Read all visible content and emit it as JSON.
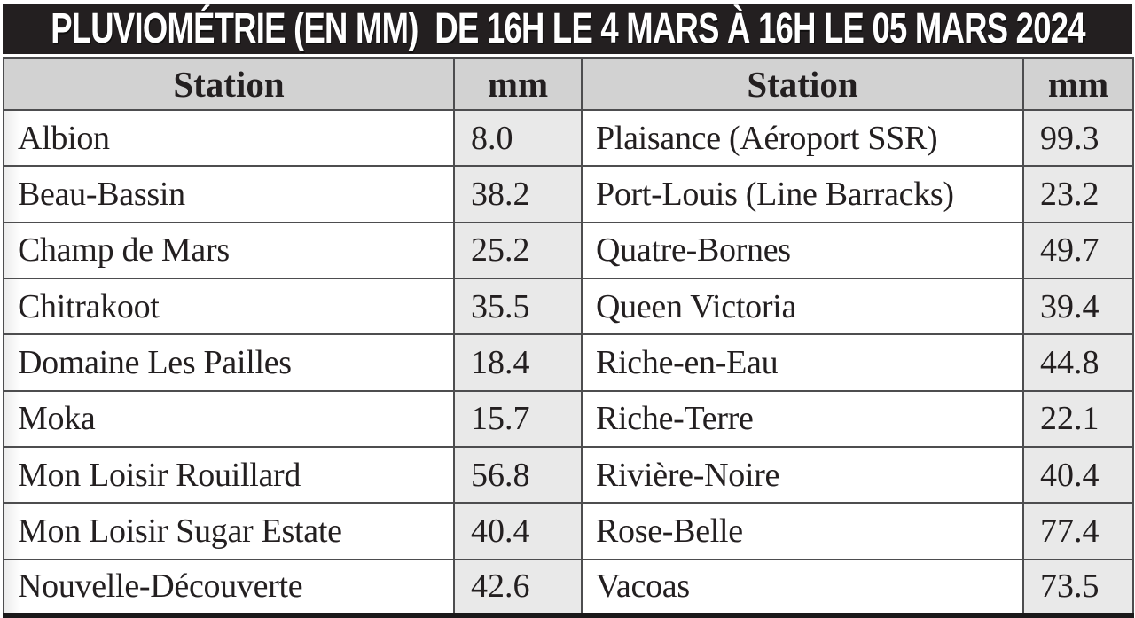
{
  "title": "PLUVIOMÉTRIE (EN MM)  DE 16H LE 4 MARS À 16H LE 05 MARS 2024",
  "table": {
    "headers": [
      "Station",
      "mm",
      "Station",
      "mm"
    ],
    "rows": [
      [
        "Albion",
        "8.0",
        "Plaisance (Aéroport SSR)",
        "99.3"
      ],
      [
        "Beau-Bassin",
        "38.2",
        "Port-Louis (Line Barracks)",
        "23.2"
      ],
      [
        "Champ de Mars",
        "25.2",
        "Quatre-Bornes",
        "49.7"
      ],
      [
        "Chitrakoot",
        "35.5",
        "Queen Victoria",
        "39.4"
      ],
      [
        "Domaine Les Pailles",
        "18.4",
        "Riche-en-Eau",
        "44.8"
      ],
      [
        "Moka",
        "15.7",
        "Riche-Terre",
        "22.1"
      ],
      [
        "Mon Loisir Rouillard",
        "56.8",
        "Rivière-Noire",
        "40.4"
      ],
      [
        "Mon Loisir Sugar Estate",
        "40.4",
        "Rose-Belle",
        "77.4"
      ],
      [
        "Nouvelle-Découverte",
        "42.6",
        "Vacoas",
        "73.5"
      ]
    ]
  },
  "colors": {
    "title_bg": "#231f20",
    "title_text": "#ffffff",
    "header_bg": "#d2d2d2",
    "mm_cell_bg": "#e9e9e9",
    "station_cell_bg": "#ffffff",
    "border": "#4d4d4f",
    "text": "#231f20"
  }
}
